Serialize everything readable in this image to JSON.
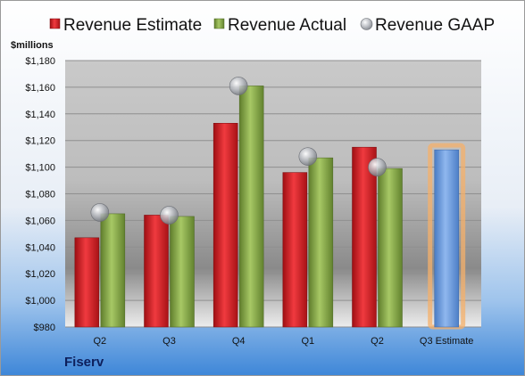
{
  "company": "Fiserv",
  "chart_data": {
    "type": "bar",
    "unit_label": "$millions",
    "categories": [
      "Q2",
      "Q3",
      "Q4",
      "Q1",
      "Q2",
      "Q3 Estimate"
    ],
    "series": [
      {
        "name": "Revenue Estimate",
        "values": [
          1047,
          1064,
          1133,
          1096,
          1115,
          null
        ],
        "color": "#e01f26"
      },
      {
        "name": "Revenue Actual",
        "values": [
          1065,
          1063,
          1161,
          1107,
          1099,
          null
        ],
        "color": "#8db24a"
      },
      {
        "name": "Revenue GAAP",
        "values": [
          1066,
          1064,
          1161,
          1108,
          1100,
          null
        ],
        "color": "#b8bcc4",
        "marker": "circle"
      },
      {
        "name": "Q3 Estimate",
        "values": [
          null,
          null,
          null,
          null,
          null,
          1113
        ],
        "color": "#6a9be0",
        "highlight": "#f5b06a"
      }
    ],
    "ylim": [
      980,
      1180
    ],
    "yticks": [
      980,
      1000,
      1020,
      1040,
      1060,
      1080,
      1100,
      1120,
      1140,
      1160,
      1180
    ],
    "ytick_labels": [
      "$980",
      "$1,000",
      "$1,020",
      "$1,040",
      "$1,060",
      "$1,080",
      "$1,100",
      "$1,120",
      "$1,140",
      "$1,160",
      "$1,180"
    ],
    "legend_position": "top",
    "grid": true
  }
}
